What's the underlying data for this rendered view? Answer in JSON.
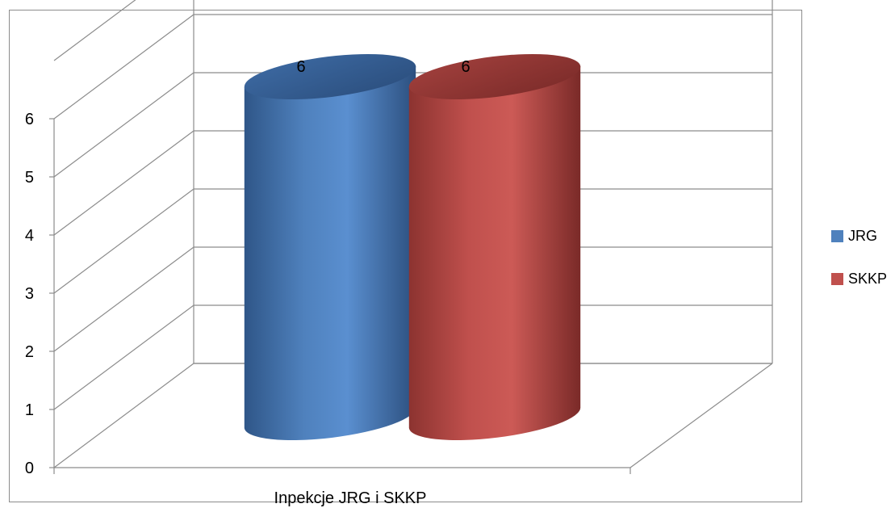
{
  "chart_data": {
    "type": "bar",
    "style": "3d-cylinder",
    "categories": [
      "Inpekcje JRG i SKKP"
    ],
    "series": [
      {
        "name": "JRG",
        "values": [
          6
        ],
        "color": "#4f81bd"
      },
      {
        "name": "SKKP",
        "values": [
          6
        ],
        "color": "#c0504d"
      }
    ],
    "data_labels": [
      "6",
      "6"
    ],
    "ylim": [
      0,
      6
    ],
    "yticks": [
      "0",
      "1",
      "2",
      "3",
      "4",
      "5",
      "6"
    ],
    "grid": true,
    "legend": "right",
    "title": "",
    "xlabel": "",
    "ylabel": ""
  }
}
